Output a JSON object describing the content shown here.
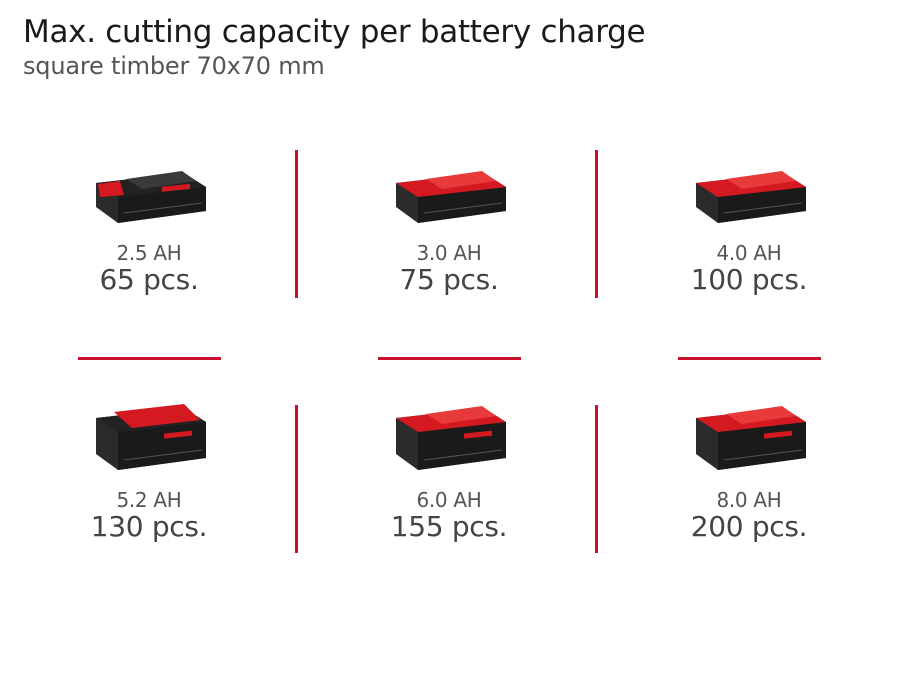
{
  "header": {
    "title": "Max. cutting capacity per battery charge",
    "subtitle": "square timber 70x70 mm"
  },
  "colors": {
    "accent": "#c8102e",
    "battery_red": "#d51920",
    "battery_dark": "#2b2b2b"
  },
  "batteries": [
    {
      "capacity": "2.5 AH",
      "pieces": "65 pcs.",
      "style": "dark-slim",
      "icon": "battery-pack-icon"
    },
    {
      "capacity": "3.0 AH",
      "pieces": "75 pcs.",
      "style": "red-slim",
      "icon": "battery-pack-icon"
    },
    {
      "capacity": "4.0 AH",
      "pieces": "100 pcs.",
      "style": "red-slim",
      "icon": "battery-pack-icon"
    },
    {
      "capacity": "5.2 AH",
      "pieces": "130 pcs.",
      "style": "dark-tall",
      "icon": "battery-pack-icon"
    },
    {
      "capacity": "6.0 AH",
      "pieces": "155 pcs.",
      "style": "red-tall",
      "icon": "battery-pack-icon"
    },
    {
      "capacity": "8.0 AH",
      "pieces": "200 pcs.",
      "style": "red-tall",
      "icon": "battery-pack-icon"
    }
  ]
}
